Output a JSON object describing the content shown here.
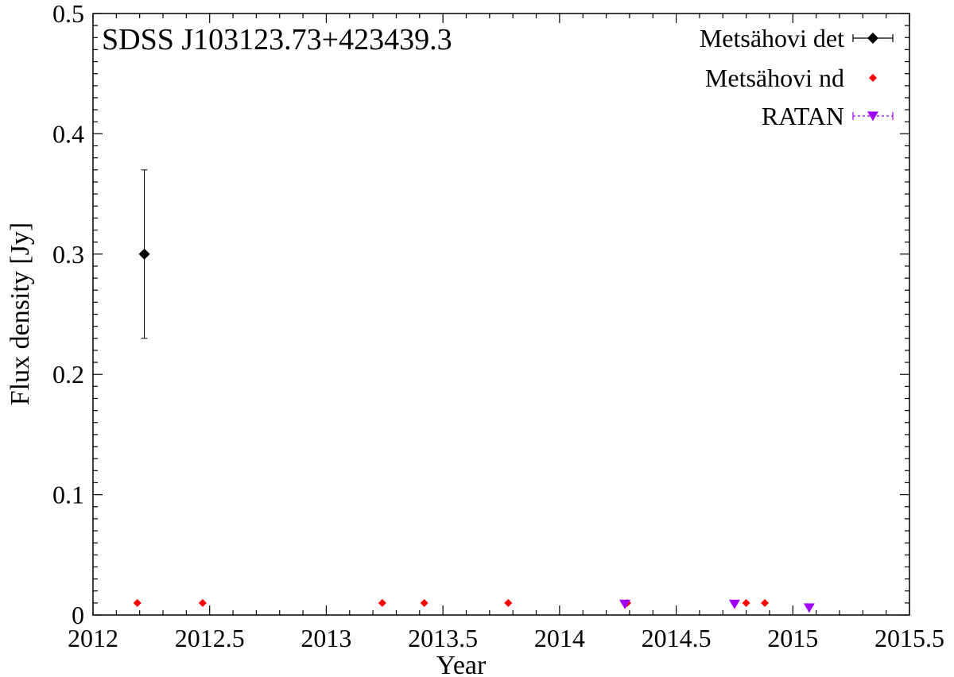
{
  "chart_data": {
    "type": "scatter",
    "title": "SDSS J103123.73+423439.3",
    "xlabel": "Year",
    "ylabel": "Flux density [Jy]",
    "xlim": [
      2012,
      2015.5
    ],
    "ylim": [
      0,
      0.5
    ],
    "xticks": [
      "2012",
      "2012.5",
      "2013",
      "2013.5",
      "2014",
      "2014.5",
      "2015",
      "2015.5"
    ],
    "yticks": [
      "0",
      "0.1",
      "0.2",
      "0.3",
      "0.4",
      "0.5"
    ],
    "grid": false,
    "legend_position": "top-right",
    "series": [
      {
        "name": "Metsähovi det",
        "marker": "diamond",
        "color": "#000000",
        "points": [
          {
            "x": 2012.22,
            "y": 0.3,
            "yerr_low": 0.23,
            "yerr_high": 0.37
          }
        ]
      },
      {
        "name": "Metsähovi nd",
        "marker": "small-diamond",
        "color": "#ff0000",
        "points": [
          {
            "x": 2012.19,
            "y": 0.01
          },
          {
            "x": 2012.47,
            "y": 0.01
          },
          {
            "x": 2013.24,
            "y": 0.01
          },
          {
            "x": 2013.42,
            "y": 0.01
          },
          {
            "x": 2013.78,
            "y": 0.01
          },
          {
            "x": 2014.29,
            "y": 0.01
          },
          {
            "x": 2014.8,
            "y": 0.01
          },
          {
            "x": 2014.88,
            "y": 0.01
          }
        ]
      },
      {
        "name": "RATAN",
        "marker": "triangle-down",
        "color": "#a000ff",
        "points": [
          {
            "x": 2014.28,
            "y": 0.009
          },
          {
            "x": 2014.75,
            "y": 0.009
          },
          {
            "x": 2015.07,
            "y": 0.006
          }
        ]
      }
    ]
  }
}
